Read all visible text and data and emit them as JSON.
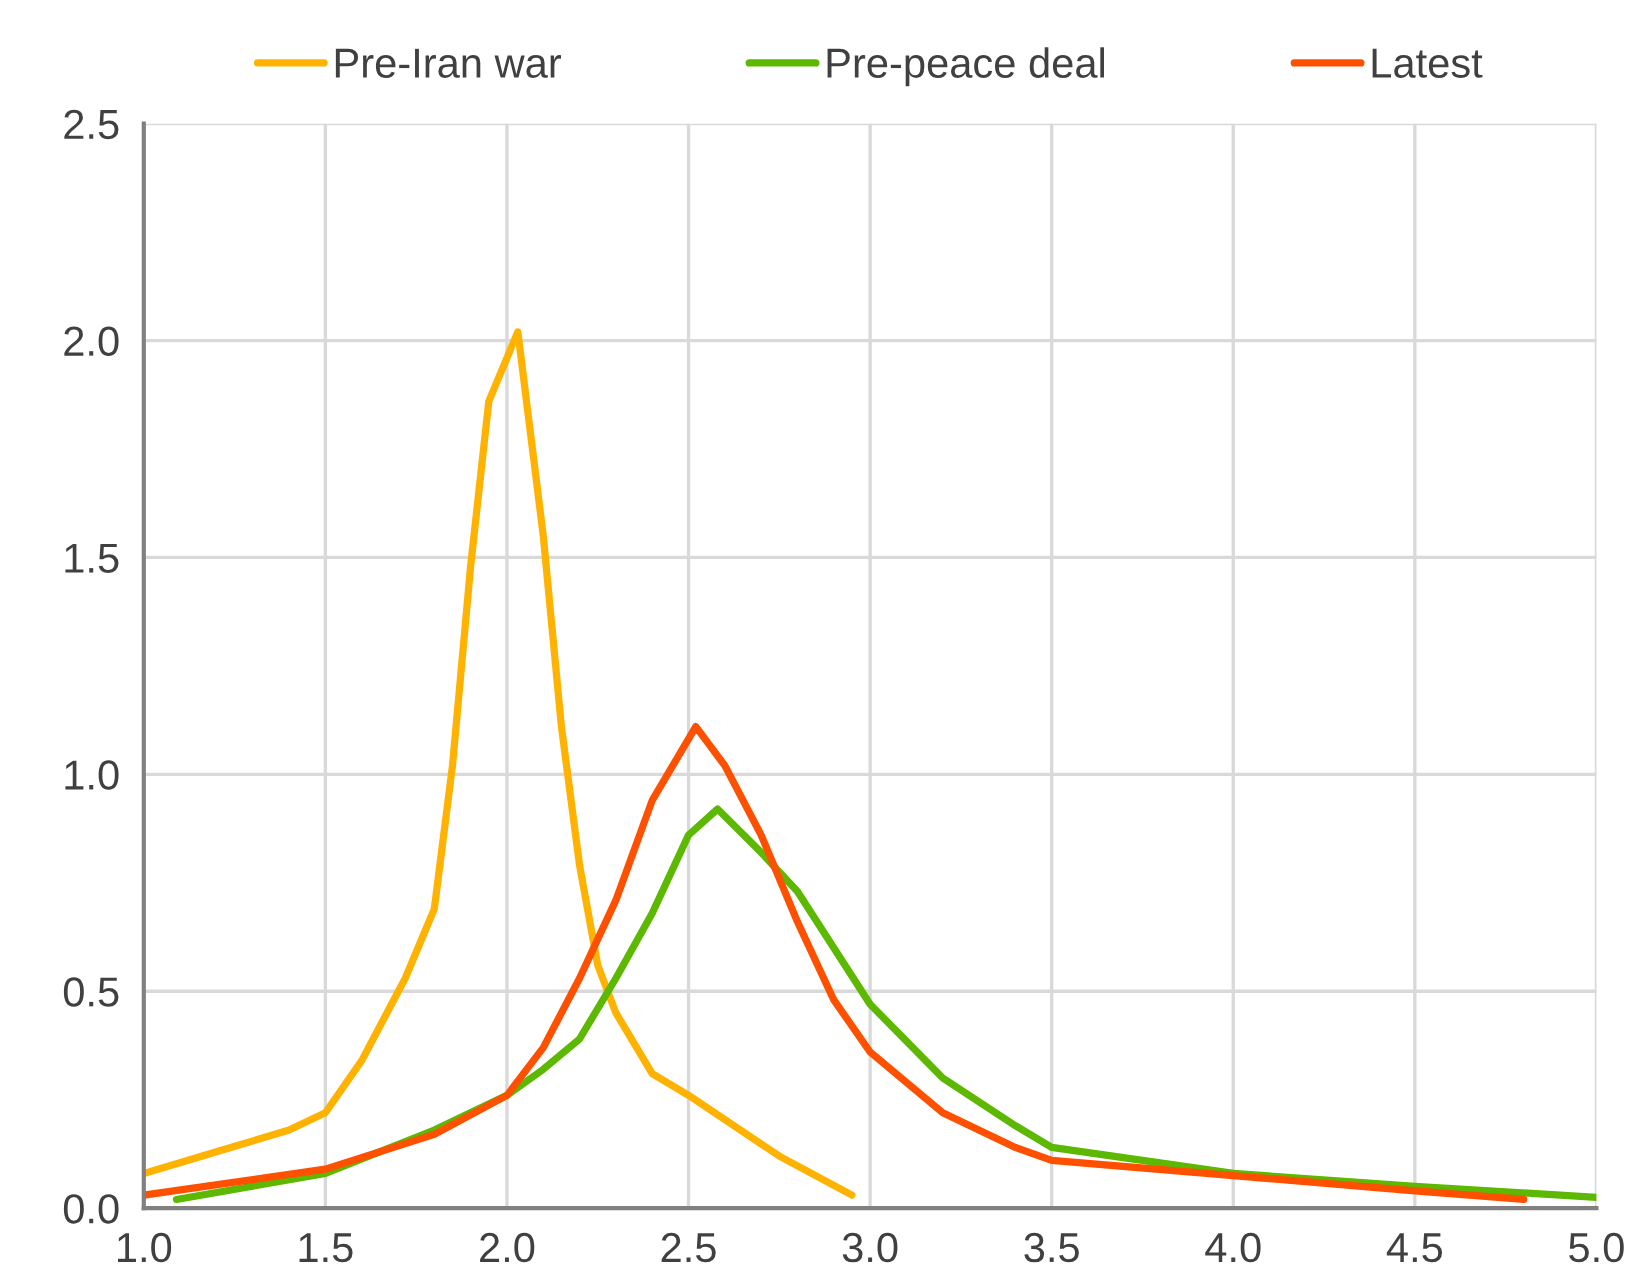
{
  "chart_data": {
    "type": "line",
    "series": [
      {
        "name": "Pre-Iran war",
        "color": "#ffb300",
        "x": [
          1.0,
          1.2,
          1.4,
          1.5,
          1.6,
          1.72,
          1.8,
          1.85,
          1.9,
          1.95,
          2.03,
          2.1,
          2.15,
          2.2,
          2.25,
          2.3,
          2.4,
          2.5,
          2.75,
          2.95
        ],
        "values": [
          0.08,
          0.13,
          0.18,
          0.22,
          0.34,
          0.53,
          0.69,
          1.02,
          1.48,
          1.86,
          2.02,
          1.55,
          1.11,
          0.79,
          0.56,
          0.45,
          0.31,
          0.26,
          0.12,
          0.03
        ]
      },
      {
        "name": "Pre-peace deal",
        "color": "#5cb800",
        "x": [
          1.09,
          1.5,
          1.8,
          2.0,
          2.1,
          2.2,
          2.3,
          2.4,
          2.5,
          2.58,
          2.7,
          2.8,
          3.0,
          3.2,
          3.4,
          3.5,
          4.0,
          4.5,
          5.0
        ],
        "values": [
          0.02,
          0.08,
          0.18,
          0.26,
          0.32,
          0.39,
          0.53,
          0.68,
          0.86,
          0.92,
          0.82,
          0.73,
          0.47,
          0.3,
          0.19,
          0.14,
          0.08,
          0.05,
          0.025
        ]
      },
      {
        "name": "Latest",
        "color": "#ff5000",
        "x": [
          1.0,
          1.5,
          1.8,
          2.0,
          2.1,
          2.2,
          2.3,
          2.4,
          2.52,
          2.6,
          2.7,
          2.8,
          2.9,
          3.0,
          3.2,
          3.4,
          3.5,
          4.0,
          4.5,
          4.8
        ],
        "values": [
          0.03,
          0.09,
          0.17,
          0.26,
          0.37,
          0.53,
          0.71,
          0.94,
          1.11,
          1.02,
          0.86,
          0.66,
          0.48,
          0.36,
          0.22,
          0.14,
          0.11,
          0.075,
          0.04,
          0.02
        ]
      }
    ],
    "xlim": [
      1.0,
      5.0
    ],
    "xticks": [
      {
        "value": 1.0,
        "label": "1.0"
      },
      {
        "value": 1.5,
        "label": "1.5"
      },
      {
        "value": 2.0,
        "label": "2.0"
      },
      {
        "value": 2.5,
        "label": "2.5"
      },
      {
        "value": 3.0,
        "label": "3.0"
      },
      {
        "value": 3.5,
        "label": "3.5"
      },
      {
        "value": 4.0,
        "label": "4.0"
      },
      {
        "value": 4.5,
        "label": "4.5"
      },
      {
        "value": 5.0,
        "label": "5.0"
      }
    ],
    "ylim": [
      0,
      2.5
    ],
    "yticks": [
      {
        "value": 0,
        "label": "0.0"
      },
      {
        "value": 0.5,
        "label": "0.5"
      },
      {
        "value": 1.0,
        "label": "1.0"
      },
      {
        "value": 1.5,
        "label": "1.5"
      },
      {
        "value": 2.0,
        "label": "2.0"
      },
      {
        "value": 2.5,
        "label": "2.5"
      }
    ],
    "grid": true,
    "legend": "top",
    "marker": "none",
    "line_style": "solid"
  }
}
